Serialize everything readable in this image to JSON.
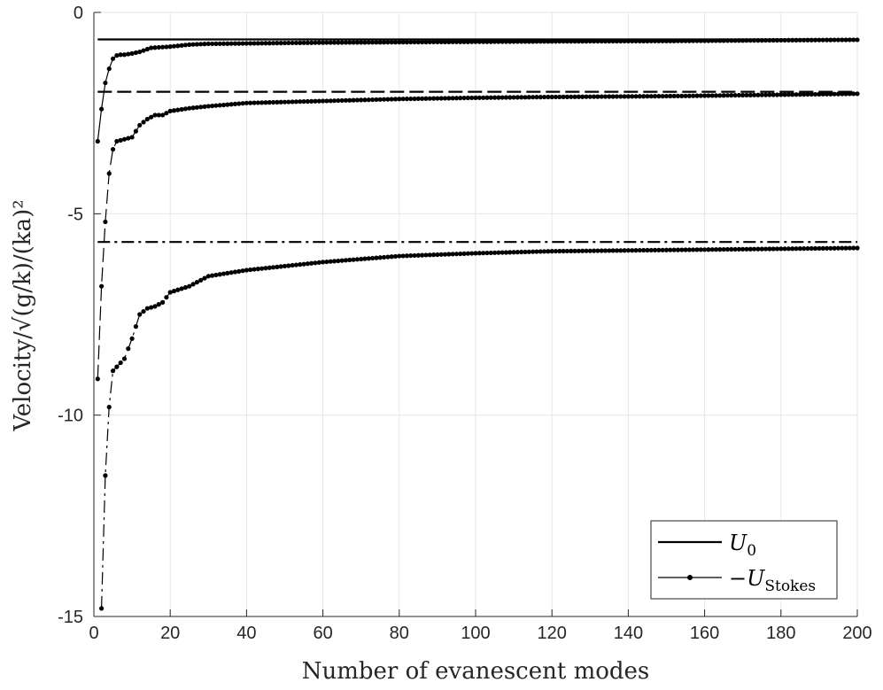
{
  "chart_data": {
    "type": "line",
    "xlabel": "Number of evanescent modes",
    "ylabel": "Velocity/√(g/k)/(ka)²",
    "xlim": [
      0,
      200
    ],
    "ylim": [
      -15,
      0
    ],
    "x_ticks": [
      0,
      20,
      40,
      60,
      80,
      100,
      120,
      140,
      160,
      180,
      200
    ],
    "y_ticks": [
      0,
      -5,
      -10,
      -15
    ],
    "grid": true,
    "legend": {
      "placement": "bottom-right",
      "entries": [
        {
          "label": "U",
          "sub": "0",
          "style": "solid"
        },
        {
          "label": "−U",
          "sub": "Stokes",
          "style": "solid-dots"
        }
      ]
    },
    "series": [
      {
        "name": "U0",
        "style": "solid",
        "x": [
          1,
          200
        ],
        "values": [
          -0.67,
          -0.67
        ],
        "group": "top"
      },
      {
        "name": "−U_Stokes",
        "style": "solid-dots",
        "group": "top",
        "x": [
          1,
          2,
          3,
          4,
          5,
          6,
          7,
          8,
          10,
          12,
          15,
          20,
          25,
          30,
          40,
          50,
          60,
          80,
          100,
          120,
          150,
          200
        ],
        "values": [
          -3.2,
          -2.4,
          -1.75,
          -1.4,
          -1.15,
          -1.07,
          -1.05,
          -1.05,
          -1.02,
          -0.98,
          -0.88,
          -0.85,
          -0.8,
          -0.78,
          -0.77,
          -0.76,
          -0.75,
          -0.74,
          -0.73,
          -0.72,
          -0.71,
          -0.68
        ]
      },
      {
        "name": "U0",
        "style": "dashed",
        "group": "middle",
        "x": [
          1,
          200
        ],
        "values": [
          -1.97,
          -1.97
        ]
      },
      {
        "name": "−U_Stokes",
        "style": "dashed-dots",
        "group": "middle",
        "x": [
          1,
          2,
          3,
          4,
          5,
          6,
          8,
          10,
          12,
          14,
          16,
          18,
          20,
          25,
          30,
          40,
          60,
          80,
          100,
          120,
          150,
          200
        ],
        "values": [
          -9.1,
          -6.8,
          -5.2,
          -4.0,
          -3.4,
          -3.2,
          -3.15,
          -3.1,
          -2.8,
          -2.65,
          -2.55,
          -2.55,
          -2.45,
          -2.38,
          -2.33,
          -2.25,
          -2.2,
          -2.15,
          -2.12,
          -2.1,
          -2.08,
          -2.02
        ]
      },
      {
        "name": "U0",
        "style": "dashdot",
        "group": "bottom",
        "x": [
          1,
          200
        ],
        "values": [
          -5.7,
          -5.7
        ]
      },
      {
        "name": "−U_Stokes",
        "style": "dashdot-dots",
        "group": "bottom",
        "x": [
          2,
          3,
          4,
          5,
          6,
          8,
          10,
          12,
          14,
          16,
          18,
          20,
          25,
          30,
          40,
          50,
          60,
          80,
          100,
          120,
          150,
          200
        ],
        "values": [
          -14.8,
          -11.5,
          -9.8,
          -8.9,
          -8.8,
          -8.6,
          -8.1,
          -7.5,
          -7.35,
          -7.3,
          -7.2,
          -6.95,
          -6.8,
          -6.55,
          -6.4,
          -6.3,
          -6.2,
          -6.05,
          -5.98,
          -5.93,
          -5.9,
          -5.85
        ]
      }
    ]
  }
}
